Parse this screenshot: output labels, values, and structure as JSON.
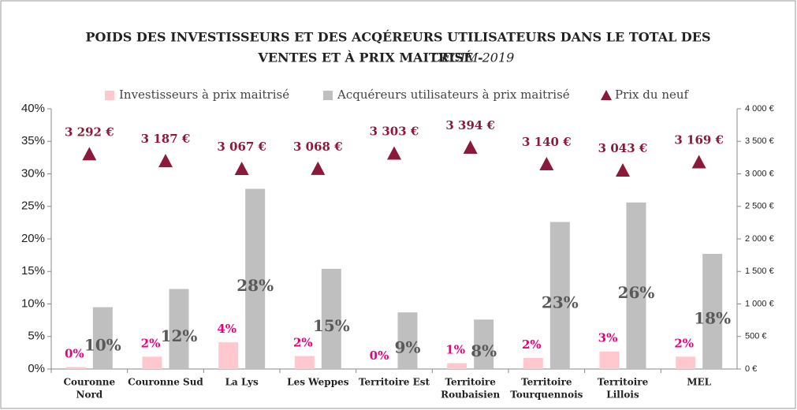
{
  "chart_data": {
    "type": "bar",
    "title": [
      "POIDS DES INVESTISSEURS ET DES ACQÉREURS UTILISATEURS DANS LE TOTAL DES",
      "VENTES ET À PRIX MAITRISÉ -"
    ],
    "title_source": "CECIM 2019",
    "categories": [
      [
        "Couronne",
        "Nord"
      ],
      [
        "Couronne Sud"
      ],
      [
        "La Lys"
      ],
      [
        "Les Weppes"
      ],
      [
        "Territoire Est"
      ],
      [
        "Territoire",
        "Roubaisien"
      ],
      [
        "Territoire",
        "Tourquennois"
      ],
      [
        "Territoire",
        "Lillois"
      ],
      [
        "MEL"
      ]
    ],
    "series": [
      {
        "name": "Investisseurs à prix maitrisé",
        "color": "#ffc7ce",
        "label_color": "#e6007e",
        "values": [
          0.3,
          1.9,
          4.1,
          2.0,
          0,
          0.9,
          1.7,
          2.7,
          1.9
        ],
        "value_labels": [
          "0%",
          "2%",
          "4%",
          "2%",
          "0%",
          "1%",
          "2%",
          "3%",
          "2%"
        ]
      },
      {
        "name": "Acquéreurs utilisateurs à prix maitrisé",
        "color": "#bfbfbf",
        "label_color": "#595959",
        "values": [
          9.5,
          12.3,
          27.7,
          15.4,
          8.7,
          7.6,
          22.6,
          25.6,
          17.7
        ],
        "value_labels": [
          "10%",
          "12%",
          "28%",
          "15%",
          "9%",
          "8%",
          "23%",
          "26%",
          "18%"
        ]
      },
      {
        "name": "Prix du neuf",
        "color": "#8b1a3a",
        "axis": "y2",
        "marker": "triangle",
        "values": [
          3292,
          3187,
          3067,
          3068,
          3303,
          3394,
          3140,
          3043,
          3169
        ],
        "value_labels": [
          "3 292 €",
          "3 187 €",
          "3 067 €",
          "3 068 €",
          "3 303 €",
          "3 394 €",
          "3 140 €",
          "3 043 €",
          "3 169 €"
        ]
      }
    ],
    "ylim": [
      0,
      40
    ],
    "yticks": [
      {
        "value": 0,
        "label": "0%"
      },
      {
        "value": 5,
        "label": "5%"
      },
      {
        "value": 10,
        "label": "10%"
      },
      {
        "value": 15,
        "label": "15%"
      },
      {
        "value": 20,
        "label": "20%"
      },
      {
        "value": 25,
        "label": "25%"
      },
      {
        "value": 30,
        "label": "30%"
      },
      {
        "value": 35,
        "label": "35%"
      },
      {
        "value": 40,
        "label": "40%"
      }
    ],
    "y2lim": [
      0,
      4000
    ],
    "y2ticks": [
      {
        "value": 0,
        "label": "0 €"
      },
      {
        "value": 500,
        "label": "500 €"
      },
      {
        "value": 1000,
        "label": "1 000 €"
      },
      {
        "value": 1500,
        "label": "1 500 €"
      },
      {
        "value": 2000,
        "label": "2 000 €"
      },
      {
        "value": 2500,
        "label": "2 500 €"
      },
      {
        "value": 3000,
        "label": "3 000 €"
      },
      {
        "value": 3500,
        "label": "3 500 €"
      },
      {
        "value": 4000,
        "label": "4 000 €"
      }
    ],
    "legend": "top",
    "grid": false
  }
}
